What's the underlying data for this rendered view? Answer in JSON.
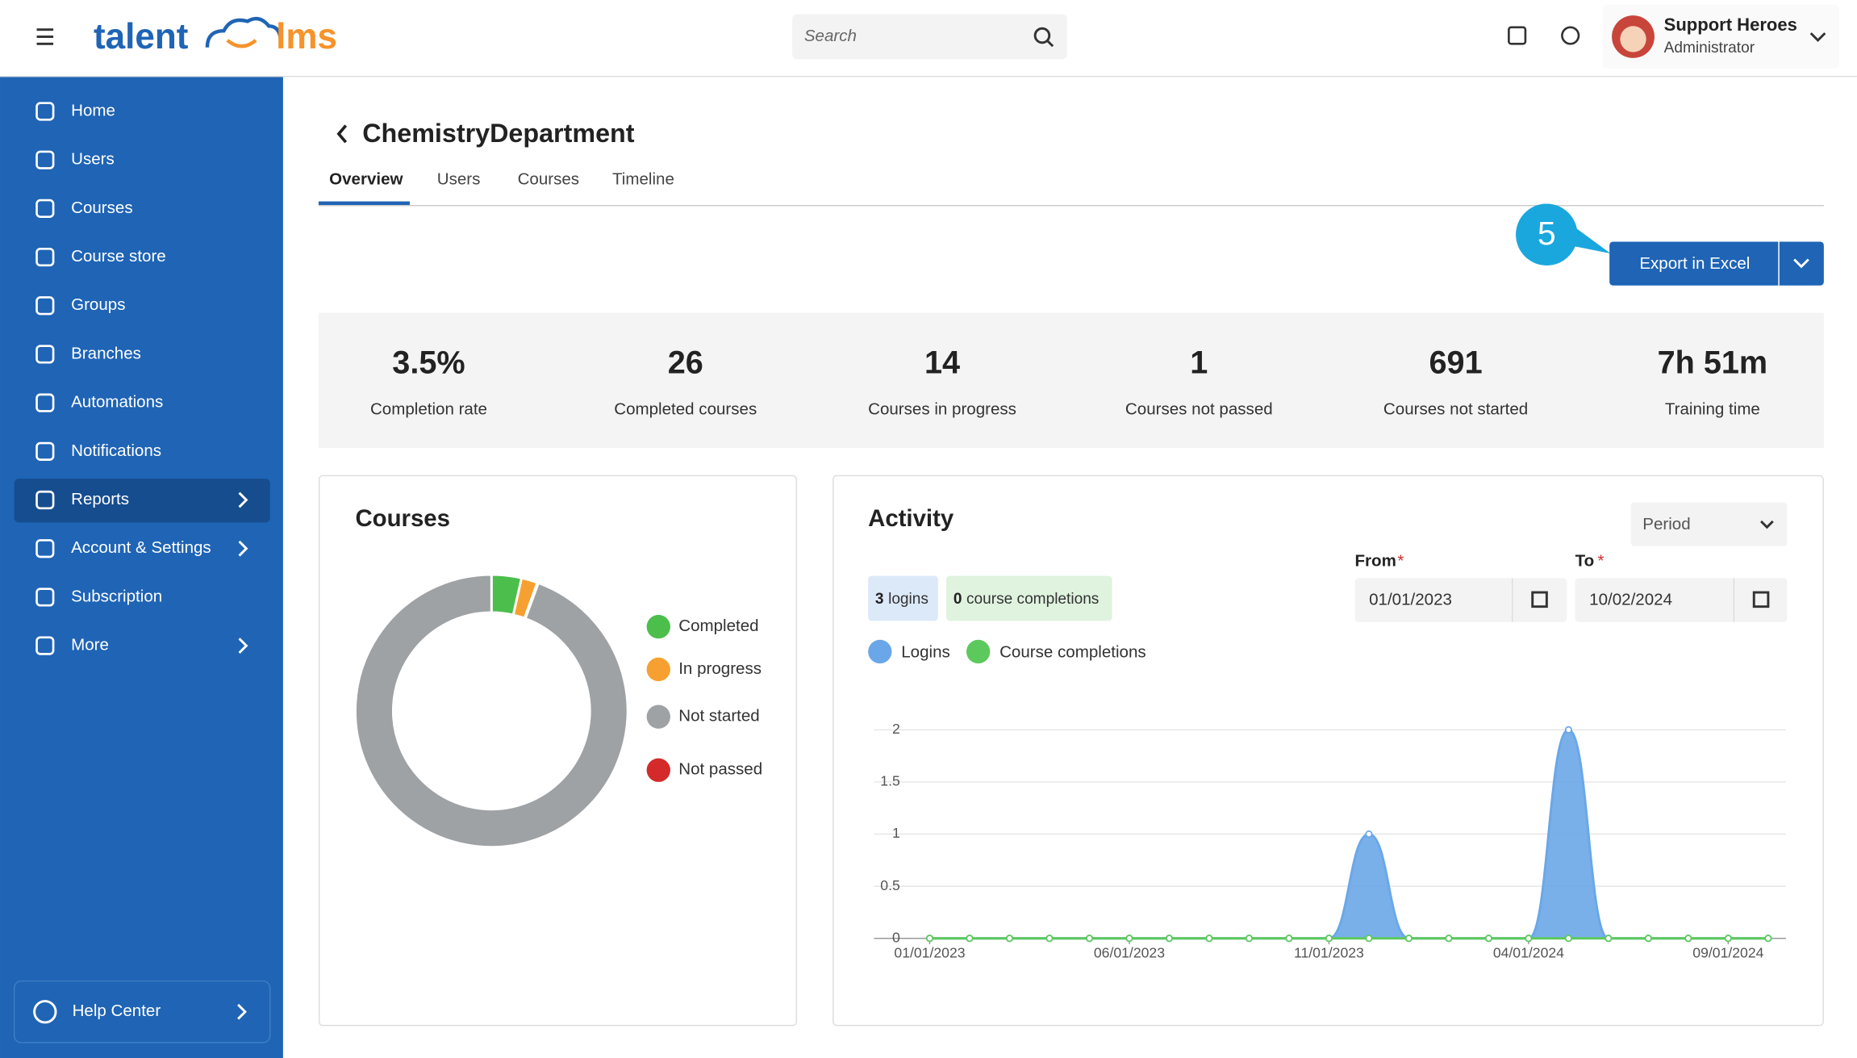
{
  "header": {
    "logo_left": "talent",
    "logo_right": "lms",
    "search_placeholder": "Search",
    "user_name": "Support Heroes",
    "user_role": "Administrator"
  },
  "sidebar": {
    "items": [
      "Home",
      "Users",
      "Courses",
      "Course store",
      "Groups",
      "Branches",
      "Automations",
      "Notifications",
      "Reports",
      "Account & Settings",
      "Subscription",
      "More"
    ],
    "help": "Help Center"
  },
  "page": {
    "title": "ChemistryDepartment",
    "tabs": [
      "Overview",
      "Users",
      "Courses",
      "Timeline"
    ],
    "step_badge": "5",
    "export_button": "Export in Excel"
  },
  "stats": [
    {
      "value": "3.5%",
      "label": "Completion rate"
    },
    {
      "value": 26,
      "label": "Completed courses"
    },
    {
      "value": 14,
      "label": "Courses in progress"
    },
    {
      "value": 1,
      "label": "Courses not passed"
    },
    {
      "value": 691,
      "label": "Courses not started"
    },
    {
      "value": "7h 51m",
      "label": "Training time"
    }
  ],
  "courses_chart": {
    "type": "pie",
    "title": "Courses",
    "categories": [
      "Completed",
      "In progress",
      "Not started",
      "Not passed"
    ],
    "colors": [
      "#4cbe4c",
      "#f7a032",
      "#9ea2a5",
      "#d42a2a"
    ],
    "values": [
      26,
      14,
      691,
      1
    ]
  },
  "activity_chart": {
    "type": "line",
    "title": "Activity",
    "period_label": "Period",
    "from_label": "From",
    "to_label": "To",
    "required_mark": "*",
    "from_date": "01/01/2023",
    "to_date": "10/02/2024",
    "summary": [
      {
        "count": 3,
        "label": "logins"
      },
      {
        "count": 0,
        "label": "course completions"
      }
    ],
    "categories": [
      "01/01/2023",
      null,
      null,
      null,
      null,
      "06/01/2023",
      null,
      null,
      null,
      null,
      "11/01/2023",
      null,
      null,
      null,
      null,
      "04/01/2024",
      null,
      null,
      null,
      null,
      "09/01/2024",
      null
    ],
    "series": [
      {
        "name": "Logins",
        "color": "#6aa7e8",
        "values": [
          0,
          0,
          0,
          0,
          0,
          0,
          0,
          0,
          0,
          0,
          0,
          1,
          0,
          0,
          0,
          0,
          2,
          0,
          0,
          0,
          0,
          0
        ]
      },
      {
        "name": "Course completions",
        "color": "#5cc95c",
        "values": [
          0,
          0,
          0,
          0,
          0,
          0,
          0,
          0,
          0,
          0,
          0,
          0,
          0,
          0,
          0,
          0,
          0,
          0,
          0,
          0,
          0,
          0
        ]
      }
    ],
    "ylim": [
      0,
      2
    ],
    "yticks": [
      0,
      0.5,
      1,
      1.5,
      2
    ],
    "grid": true
  }
}
